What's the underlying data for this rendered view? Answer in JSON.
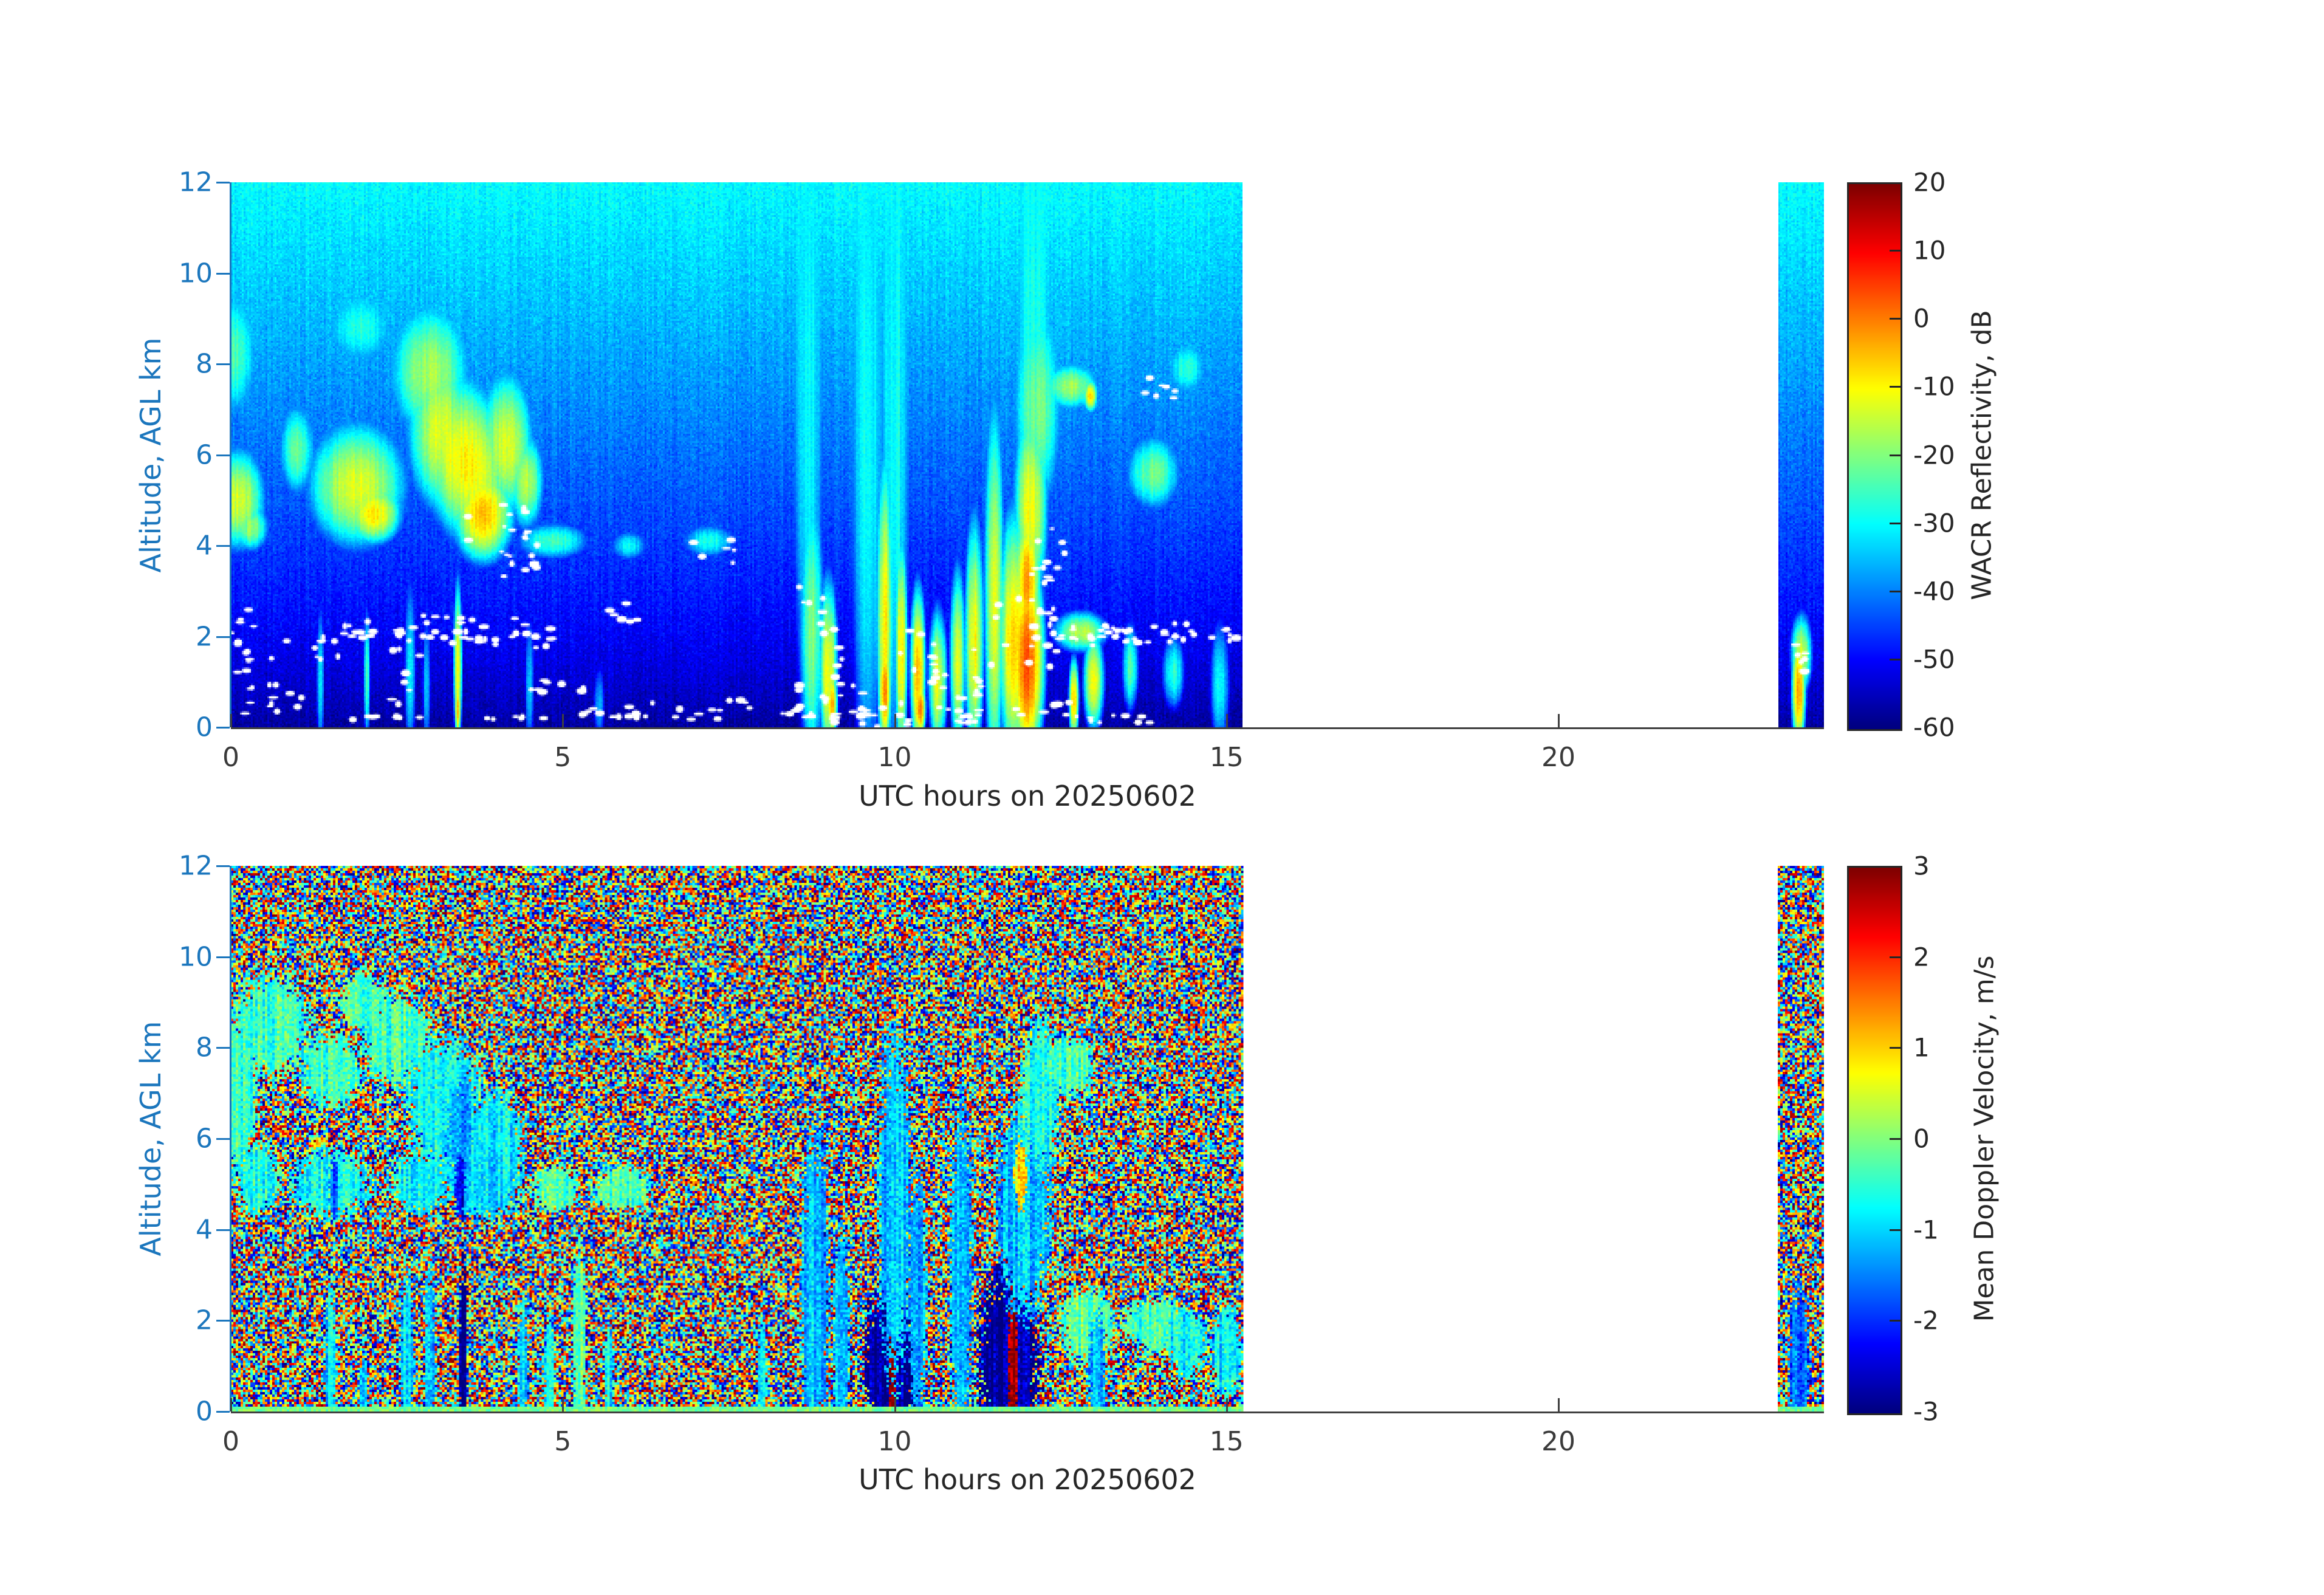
{
  "colors": {
    "background": "#ffffff",
    "y_axis": "#1b76bd",
    "x_axis": "#3a3a3a",
    "colorbar_border": "#262626",
    "colormap": "jet"
  },
  "chart_data": [
    {
      "type": "heatmap",
      "name": "wacr-reflectivity",
      "xlabel": "UTC hours on 20250602",
      "ylabel": "Altitude, AGL km",
      "xlim": [
        0,
        24
      ],
      "ylim": [
        0,
        12
      ],
      "xticks": [
        0,
        5,
        10,
        15,
        20
      ],
      "yticks": [
        0,
        2,
        4,
        6,
        8,
        10,
        12
      ],
      "grid": false,
      "colorbar": {
        "label": "WACR Reflectivity, dB",
        "ticks": [
          20,
          10,
          0,
          -10,
          -20,
          -30,
          -40,
          -50,
          -60
        ],
        "range": [
          -60,
          20
        ],
        "position": "right"
      },
      "coverage_hours": [
        [
          0,
          15.25
        ],
        [
          23.3,
          24
        ]
      ],
      "background": {
        "type": "range_noise_floor",
        "floor_at_0km": -58,
        "floor_at_12km": -30,
        "exponent": 0.75,
        "noise_sigma": 2.1
      },
      "features": [
        [
          0.08,
          8.2,
          0.3,
          1.4,
          -24
        ],
        [
          0.12,
          5.0,
          0.45,
          1.3,
          -13
        ],
        [
          0.3,
          4.4,
          0.3,
          0.6,
          -18
        ],
        [
          1.0,
          6.1,
          0.3,
          1.1,
          -23
        ],
        [
          1.95,
          8.8,
          0.5,
          0.8,
          -27
        ],
        [
          1.9,
          5.3,
          0.85,
          1.6,
          -12
        ],
        [
          2.15,
          4.7,
          0.5,
          0.8,
          -8
        ],
        [
          3.0,
          7.8,
          0.65,
          1.6,
          -17
        ],
        [
          3.15,
          6.5,
          0.55,
          2.0,
          -13
        ],
        [
          3.55,
          5.8,
          0.8,
          2.2,
          -9,
          0.1
        ],
        [
          3.8,
          4.7,
          0.55,
          1.3,
          -5
        ],
        [
          4.15,
          6.2,
          0.45,
          1.8,
          -12
        ],
        [
          4.45,
          5.4,
          0.3,
          1.2,
          -16
        ],
        [
          4.85,
          4.1,
          0.6,
          0.45,
          -24
        ],
        [
          7.2,
          4.1,
          0.45,
          0.4,
          -28
        ],
        [
          6.0,
          4.0,
          0.3,
          0.35,
          -30
        ],
        [
          1.35,
          1.0,
          0.07,
          2.0,
          -33
        ],
        [
          2.05,
          1.1,
          0.06,
          1.8,
          -24
        ],
        [
          2.7,
          1.2,
          0.1,
          2.4,
          -31
        ],
        [
          2.95,
          0.9,
          0.07,
          1.8,
          -33
        ],
        [
          3.42,
          1.3,
          0.08,
          2.4,
          -9
        ],
        [
          3.42,
          0.4,
          0.06,
          0.9,
          -4
        ],
        [
          4.5,
          0.9,
          0.08,
          1.8,
          -34
        ],
        [
          5.55,
          0.5,
          0.1,
          1.0,
          -36
        ],
        [
          8.75,
          2.0,
          0.22,
          4.0,
          -19
        ],
        [
          9.0,
          1.2,
          0.18,
          2.6,
          -10
        ],
        [
          9.05,
          0.5,
          0.12,
          1.0,
          -4
        ],
        [
          8.7,
          7.0,
          0.25,
          10,
          -29
        ],
        [
          9.6,
          6.0,
          0.3,
          11,
          -29
        ],
        [
          10.0,
          6.0,
          0.25,
          11,
          -28
        ],
        [
          12.1,
          8.0,
          0.3,
          8,
          -28
        ],
        [
          9.85,
          2.2,
          0.16,
          4.5,
          -9
        ],
        [
          9.85,
          0.8,
          0.13,
          1.6,
          -1
        ],
        [
          10.1,
          1.6,
          0.12,
          3.2,
          -8
        ],
        [
          10.35,
          1.2,
          0.15,
          2.4,
          -5
        ],
        [
          10.38,
          0.4,
          0.12,
          0.8,
          0
        ],
        [
          10.65,
          1.0,
          0.18,
          2.0,
          -12
        ],
        [
          10.95,
          1.4,
          0.15,
          2.6,
          -13
        ],
        [
          11.2,
          1.8,
          0.18,
          3.4,
          -10
        ],
        [
          11.5,
          2.6,
          0.18,
          5.2,
          -13
        ],
        [
          11.8,
          1.8,
          0.3,
          3.6,
          -5
        ],
        [
          12.0,
          1.4,
          0.33,
          3.0,
          3
        ],
        [
          12.0,
          3.2,
          0.25,
          2.0,
          -3
        ],
        [
          12.05,
          4.8,
          0.3,
          2.6,
          -11
        ],
        [
          12.15,
          7.0,
          0.4,
          2.6,
          -21
        ],
        [
          12.65,
          7.5,
          0.45,
          0.55,
          -17
        ],
        [
          12.95,
          7.3,
          0.12,
          0.4,
          -8
        ],
        [
          12.8,
          2.1,
          0.5,
          0.55,
          -15
        ],
        [
          13.0,
          1.0,
          0.2,
          1.4,
          -11
        ],
        [
          12.7,
          0.6,
          0.1,
          1.2,
          -6
        ],
        [
          13.9,
          5.6,
          0.45,
          0.9,
          -21
        ],
        [
          14.4,
          7.9,
          0.3,
          0.6,
          -27
        ],
        [
          13.55,
          1.3,
          0.15,
          1.2,
          -25
        ],
        [
          14.2,
          1.2,
          0.2,
          1.0,
          -26
        ],
        [
          14.9,
          0.9,
          0.18,
          1.7,
          -30
        ],
        [
          23.62,
          0.8,
          0.14,
          1.7,
          -3
        ],
        [
          23.66,
          1.6,
          0.2,
          1.1,
          -14
        ]
      ],
      "white_markers": [
        [
          0.35,
          0.8,
          0.35,
          0.5,
          8
        ],
        [
          0.9,
          0.5,
          0.3,
          0.3,
          6
        ],
        [
          0.55,
          1.6,
          0.45,
          0.4,
          10
        ],
        [
          0.15,
          2.3,
          0.2,
          0.3,
          5
        ],
        [
          1.6,
          1.9,
          0.5,
          0.5,
          10
        ],
        [
          2.15,
          2.0,
          0.45,
          0.4,
          12
        ],
        [
          2.6,
          1.0,
          0.25,
          0.8,
          8
        ],
        [
          2.8,
          2.1,
          0.3,
          0.3,
          8
        ],
        [
          3.35,
          2.2,
          0.5,
          0.3,
          10
        ],
        [
          3.7,
          2.1,
          0.6,
          0.3,
          12
        ],
        [
          4.0,
          4.3,
          0.45,
          1.1,
          14
        ],
        [
          4.4,
          3.9,
          0.25,
          0.5,
          8
        ],
        [
          4.65,
          2.0,
          0.35,
          0.3,
          8
        ],
        [
          5.0,
          0.9,
          0.5,
          0.15,
          8
        ],
        [
          5.9,
          2.6,
          0.25,
          0.3,
          6
        ],
        [
          5.4,
          0.35,
          0.5,
          0.15,
          6
        ],
        [
          6.4,
          0.4,
          0.6,
          0.2,
          8
        ],
        [
          6.9,
          0.3,
          0.5,
          0.15,
          6
        ],
        [
          7.3,
          3.9,
          0.35,
          0.3,
          6
        ],
        [
          7.7,
          0.4,
          0.4,
          0.2,
          5
        ],
        [
          8.4,
          0.35,
          0.3,
          0.15,
          5
        ],
        [
          8.85,
          1.5,
          0.35,
          1.7,
          16
        ],
        [
          9.2,
          0.8,
          0.3,
          1.0,
          10
        ],
        [
          9.3,
          0.2,
          0.5,
          0.12,
          8
        ],
        [
          9.8,
          0.4,
          0.5,
          0.4,
          10
        ],
        [
          10.35,
          1.1,
          0.3,
          1.2,
          10
        ],
        [
          10.6,
          0.25,
          0.7,
          0.15,
          10
        ],
        [
          10.9,
          1.2,
          0.4,
          1.0,
          10
        ],
        [
          11.4,
          0.6,
          0.4,
          0.6,
          8
        ],
        [
          11.95,
          2.1,
          0.5,
          0.8,
          14
        ],
        [
          12.25,
          3.8,
          0.35,
          0.7,
          12
        ],
        [
          12.3,
          0.35,
          0.5,
          0.2,
          8
        ],
        [
          12.45,
          2.2,
          0.3,
          0.5,
          8
        ],
        [
          13.0,
          2.05,
          0.55,
          0.25,
          14
        ],
        [
          13.3,
          0.2,
          0.6,
          0.12,
          8
        ],
        [
          13.6,
          2.0,
          0.5,
          0.25,
          10
        ],
        [
          14.05,
          7.5,
          0.3,
          0.3,
          8
        ],
        [
          14.2,
          2.1,
          0.55,
          0.25,
          10
        ],
        [
          14.75,
          2.0,
          0.4,
          0.2,
          8
        ],
        [
          2.3,
          0.15,
          0.5,
          0.1,
          6
        ],
        [
          4.2,
          0.15,
          0.6,
          0.1,
          6
        ],
        [
          23.62,
          1.5,
          0.12,
          0.4,
          6
        ]
      ]
    },
    {
      "type": "heatmap",
      "name": "mean-doppler-velocity",
      "xlabel": "UTC hours on 20250602",
      "ylabel": "Altitude, AGL km",
      "xlim": [
        0,
        24
      ],
      "ylim": [
        0,
        12
      ],
      "xticks": [
        0,
        5,
        10,
        15,
        20
      ],
      "yticks": [
        0,
        2,
        4,
        6,
        8,
        10,
        12
      ],
      "grid": false,
      "colorbar": {
        "label": "Mean Doppler Velocity, m/s",
        "ticks": [
          3,
          2,
          1,
          0,
          -1,
          -2,
          -3
        ],
        "range": [
          -3,
          3
        ],
        "position": "right"
      },
      "coverage_hours": [
        [
          0,
          15.25
        ],
        [
          23.3,
          24
        ]
      ],
      "background": {
        "type": "uniform_random",
        "range": [
          -3,
          3
        ]
      },
      "surface_line": {
        "height_km": 0.1,
        "value": -0.05
      },
      "features": [
        [
          0.6,
          8.5,
          0.7,
          1.3,
          -0.4
        ],
        [
          1.5,
          7.5,
          0.5,
          1.0,
          -0.5
        ],
        [
          0.1,
          7.0,
          0.35,
          2.0,
          -0.4
        ],
        [
          2.0,
          9.0,
          0.4,
          0.8,
          -0.3
        ],
        [
          2.5,
          8.2,
          0.6,
          1.2,
          -0.4
        ],
        [
          3.2,
          6.8,
          0.7,
          1.7,
          -0.7
        ],
        [
          3.5,
          6.0,
          0.3,
          1.5,
          -1.3
        ],
        [
          4.0,
          5.8,
          0.5,
          1.5,
          -0.9
        ],
        [
          0.4,
          5.1,
          0.4,
          0.9,
          -0.6
        ],
        [
          1.5,
          5.0,
          0.7,
          0.9,
          -0.7
        ],
        [
          1.55,
          4.9,
          0.08,
          0.9,
          -1.9
        ],
        [
          2.85,
          5.0,
          0.55,
          0.8,
          -0.8
        ],
        [
          3.8,
          5.0,
          0.6,
          0.9,
          -1.0
        ],
        [
          3.45,
          4.9,
          0.1,
          0.9,
          -2.2
        ],
        [
          4.9,
          4.9,
          0.4,
          0.6,
          -0.3
        ],
        [
          5.9,
          4.9,
          0.5,
          0.6,
          -0.3
        ],
        [
          1.5,
          1.0,
          0.1,
          2.0,
          -1.0
        ],
        [
          2.0,
          0.5,
          0.07,
          1.0,
          -0.9
        ],
        [
          2.65,
          1.2,
          0.12,
          2.4,
          -1.0
        ],
        [
          3.0,
          1.2,
          0.1,
          2.4,
          -1.1
        ],
        [
          3.5,
          1.3,
          0.07,
          2.6,
          -2.8
        ],
        [
          4.4,
          0.9,
          0.1,
          1.8,
          -1.0
        ],
        [
          4.8,
          0.8,
          0.09,
          1.6,
          -0.9
        ],
        [
          5.25,
          1.4,
          0.12,
          2.8,
          -0.15
        ],
        [
          5.7,
          0.8,
          0.08,
          1.6,
          -0.8
        ],
        [
          8.0,
          0.8,
          0.08,
          1.6,
          -0.9
        ],
        [
          8.8,
          2.5,
          0.25,
          4.5,
          -1.1
        ],
        [
          9.2,
          1.5,
          0.15,
          3.0,
          -1.0
        ],
        [
          9.95,
          1.1,
          0.5,
          2.2,
          -2.9
        ],
        [
          9.97,
          1.0,
          0.06,
          2.0,
          2.9
        ],
        [
          10.0,
          4.5,
          0.3,
          4.5,
          -1.2
        ],
        [
          10.35,
          2.5,
          0.15,
          3.5,
          -1.1
        ],
        [
          11.0,
          3.0,
          0.2,
          4.5,
          -1.2
        ],
        [
          11.72,
          1.2,
          0.55,
          2.4,
          -2.9
        ],
        [
          11.78,
          1.2,
          0.09,
          2.0,
          2.8
        ],
        [
          11.95,
          4.5,
          0.5,
          2.8,
          -1.2
        ],
        [
          11.9,
          5.2,
          0.12,
          0.9,
          0.8
        ],
        [
          12.2,
          7.0,
          0.35,
          2.0,
          -0.7
        ],
        [
          12.65,
          7.6,
          0.4,
          0.8,
          -0.35
        ],
        [
          12.9,
          1.9,
          0.5,
          1.0,
          -0.25
        ],
        [
          13.05,
          0.8,
          0.15,
          1.6,
          -1.2
        ],
        [
          13.9,
          1.9,
          0.55,
          0.7,
          -0.4
        ],
        [
          14.4,
          1.5,
          0.35,
          0.9,
          -0.8
        ],
        [
          15.0,
          1.3,
          0.3,
          1.2,
          -0.9
        ],
        [
          23.62,
          1.0,
          0.18,
          2.2,
          -1.6
        ]
      ]
    }
  ]
}
